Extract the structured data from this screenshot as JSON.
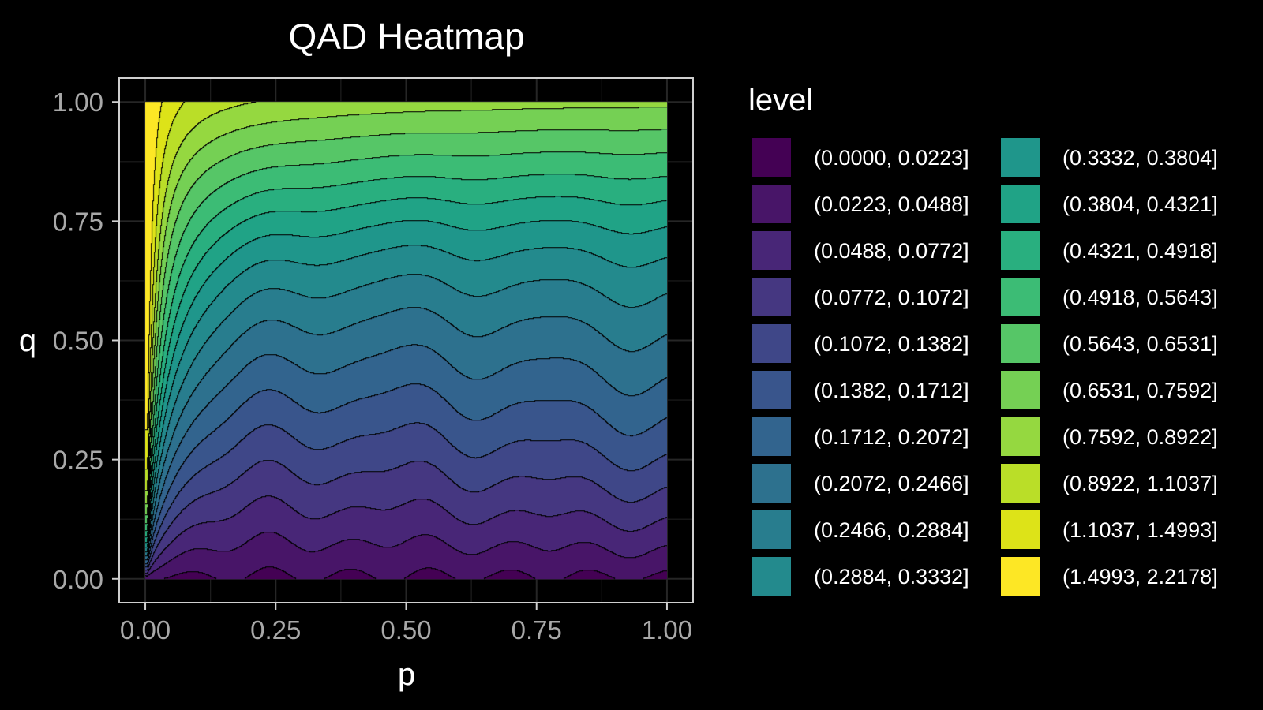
{
  "chart_data": {
    "type": "contour",
    "title": "QAD Heatmap",
    "xlabel": "p",
    "ylabel": "q",
    "xlim": [
      -0.05,
      1.05
    ],
    "ylim": [
      -0.05,
      1.05
    ],
    "x_ticks": [
      "0.00",
      "0.25",
      "0.50",
      "0.75",
      "1.00"
    ],
    "y_ticks": [
      "0.00",
      "0.25",
      "0.50",
      "0.75",
      "1.00"
    ],
    "x_tick_values": [
      0,
      0.25,
      0.5,
      0.75,
      1
    ],
    "y_tick_values": [
      0,
      0.25,
      0.5,
      0.75,
      1
    ],
    "grid": true,
    "legend": {
      "title": "level",
      "position": "right",
      "columns": 2,
      "entries": [
        {
          "label": "(0.0000, 0.0223]",
          "color": "#440154"
        },
        {
          "label": "(0.0223, 0.0488]",
          "color": "#481568"
        },
        {
          "label": "(0.0488, 0.0772]",
          "color": "#482677"
        },
        {
          "label": "(0.0772, 0.1072]",
          "color": "#453781"
        },
        {
          "label": "(0.1072, 0.1382]",
          "color": "#3F4788"
        },
        {
          "label": "(0.1382, 0.1712]",
          "color": "#39558C"
        },
        {
          "label": "(0.1712, 0.2072]",
          "color": "#32648E"
        },
        {
          "label": "(0.2072, 0.2466]",
          "color": "#2D718E"
        },
        {
          "label": "(0.2466, 0.2884]",
          "color": "#287D8E"
        },
        {
          "label": "(0.2884, 0.3332]",
          "color": "#238A8D"
        },
        {
          "label": "(0.3332, 0.3804]",
          "color": "#1F968B"
        },
        {
          "label": "(0.3804, 0.4321]",
          "color": "#20A386"
        },
        {
          "label": "(0.4321, 0.4918]",
          "color": "#29AF7F"
        },
        {
          "label": "(0.4918, 0.5643]",
          "color": "#3CBC75"
        },
        {
          "label": "(0.5643, 0.6531]",
          "color": "#56C667"
        },
        {
          "label": "(0.6531, 0.7592]",
          "color": "#75D054"
        },
        {
          "label": "(0.7592, 0.8922]",
          "color": "#95D840"
        },
        {
          "label": "(0.8922, 1.1037]",
          "color": "#BADE28"
        },
        {
          "label": "(1.1037, 1.4993]",
          "color": "#DDE318"
        },
        {
          "label": "(1.4993, 2.2178]",
          "color": "#FDE725"
        }
      ]
    }
  }
}
